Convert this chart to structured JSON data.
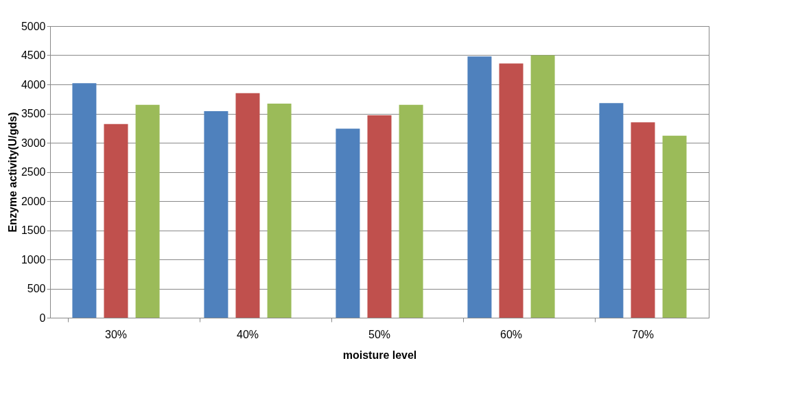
{
  "chart_data": {
    "type": "bar",
    "xlabel": "moisture level",
    "ylabel": "Enzyme activity(U/gds)",
    "categories": [
      "30%",
      "40%",
      "50%",
      "60%",
      "70%"
    ],
    "series": [
      {
        "color": "#4f81bd",
        "values": [
          4020,
          3540,
          3240,
          4480,
          3680
        ]
      },
      {
        "color": "#c0504d",
        "values": [
          3320,
          3850,
          3470,
          4360,
          3350
        ]
      },
      {
        "color": "#9bbb59",
        "values": [
          3650,
          3670,
          3650,
          4500,
          3120
        ]
      }
    ],
    "ylim": [
      0,
      5000
    ],
    "yticks": [
      0,
      500,
      1000,
      1500,
      2000,
      2500,
      3000,
      3500,
      4000,
      4500,
      5000
    ],
    "grid": "y",
    "legend": false
  }
}
